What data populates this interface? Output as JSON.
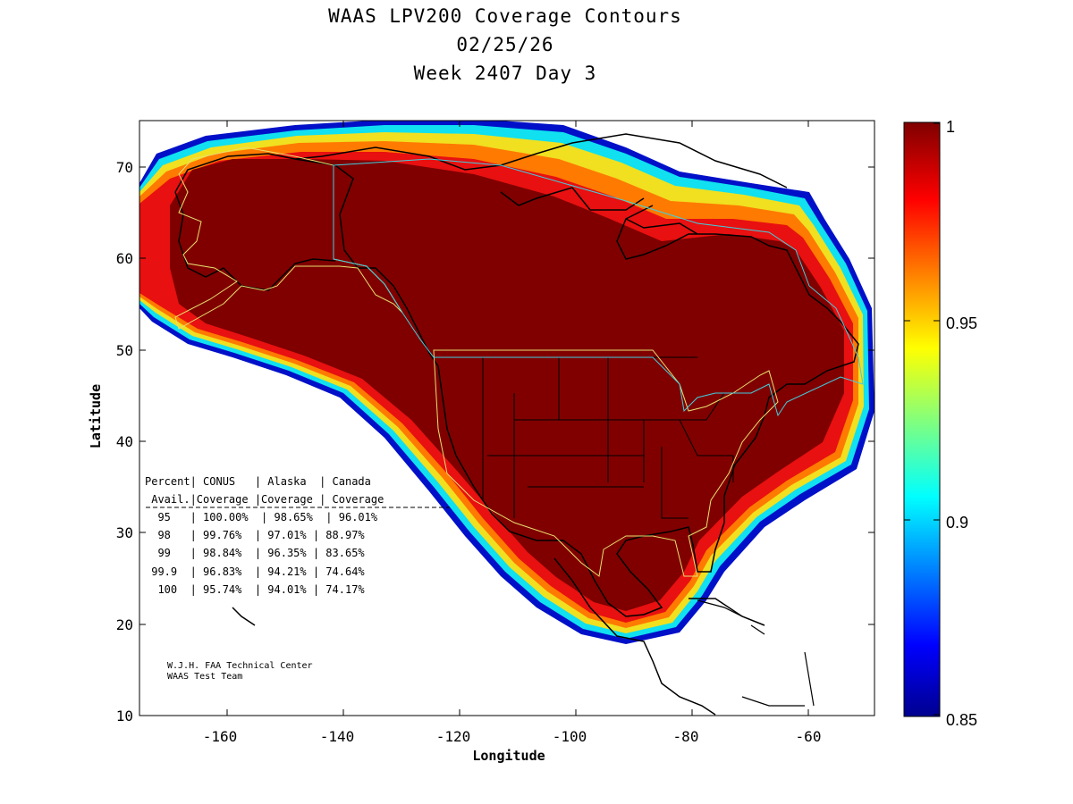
{
  "title": {
    "line1": "WAAS LPV200 Coverage Contours",
    "line2": "02/25/26",
    "line3": "Week 2407 Day 3"
  },
  "axes": {
    "xlabel": "Longitude",
    "ylabel": "Latitude",
    "xticks": [
      "-160",
      "-140",
      "-120",
      "-100",
      "-80",
      "-60"
    ],
    "yticks": [
      "70",
      "60",
      "50",
      "40",
      "30",
      "20",
      "10"
    ],
    "xlim": [
      -175,
      -49
    ],
    "ylim": [
      10,
      75
    ]
  },
  "colorbar": {
    "ticks": [
      "1",
      "0.95",
      "0.9",
      "0.85"
    ],
    "range": [
      0.85,
      1.0
    ],
    "colormap": "jet",
    "stops": [
      "#00008f",
      "#0000ff",
      "#00ffff",
      "#ffff00",
      "#ff0000",
      "#800000"
    ]
  },
  "table": {
    "header1": "Percent| CONUS   | Alaska  | Canada",
    "header2": " Avail.|Coverage |Coverage | Coverage",
    "rule": "------------------------------------------",
    "rows": [
      "  95   | 100.00%  | 98.65%  | 96.01%",
      "  98   | 99.76%  | 97.01% | 88.97%",
      "  99   | 98.84%  | 96.35% | 83.65%",
      " 99.9  | 96.83%  | 94.21% | 74.64%",
      "  100  | 95.74%  | 94.01% | 74.17%"
    ]
  },
  "coverage_table": {
    "columns": [
      "Percent Avail.",
      "CONUS Coverage",
      "Alaska Coverage",
      "Canada Coverage"
    ],
    "rows": [
      [
        "95",
        "100.00%",
        "98.65%",
        "96.01%"
      ],
      [
        "98",
        "99.76%",
        "97.01%",
        "88.97%"
      ],
      [
        "99",
        "98.84%",
        "96.35%",
        "83.65%"
      ],
      [
        "99.9",
        "96.83%",
        "94.21%",
        "74.64%"
      ],
      [
        "100",
        "95.74%",
        "94.01%",
        "74.17%"
      ]
    ]
  },
  "credit": {
    "line1": "W.J.H. FAA Technical Center",
    "line2": "WAAS Test Team"
  }
}
